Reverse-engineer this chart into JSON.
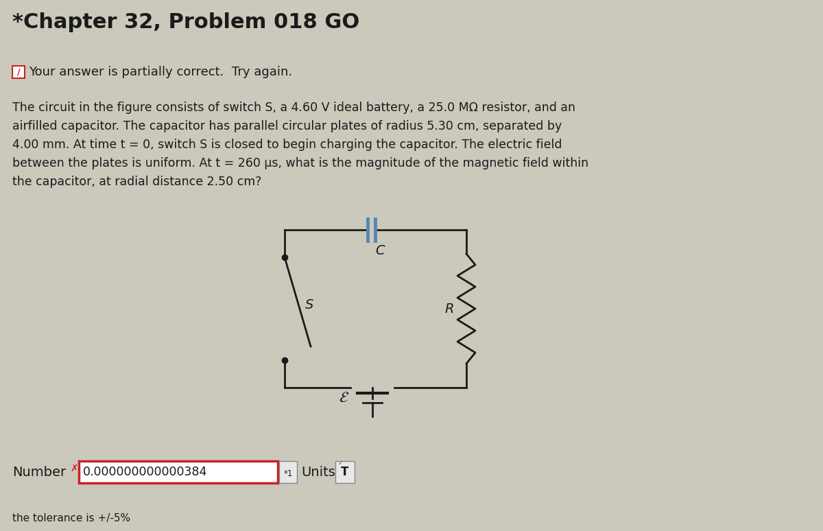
{
  "title": "*Chapter 32, Problem 018 GO",
  "background_color": "#cbc8bc",
  "text_color": "#1a1a1a",
  "partial_correct_text": "Your answer is partially correct.  Try again.",
  "prob_line1": "The circuit in the figure consists of switch S, a 4.60 V ideal battery, a 25.0 MΩ resistor, and an",
  "prob_line2": "airfilled capacitor. The capacitor has parallel circular plates of radius 5.30 cm, separated by",
  "prob_line3": "4.00 mm. At time t = 0, switch S is closed to begin charging the capacitor. The electric field",
  "prob_line4": "between the plates is uniform. At t = 260 μs, what is the magnitude of the magnetic field within",
  "prob_line5": "the capacitor, at radial distance 2.50 cm?",
  "number_label": "Number",
  "number_value": "0.000000000000384",
  "units_label": "Units",
  "tolerance_text": "the tolerance is +/-5%",
  "circuit_color": "#1a1a1a",
  "capacitor_color": "#5585b5",
  "answer_box_border": "#cc2222",
  "answer_box_bg": "#ffffff"
}
